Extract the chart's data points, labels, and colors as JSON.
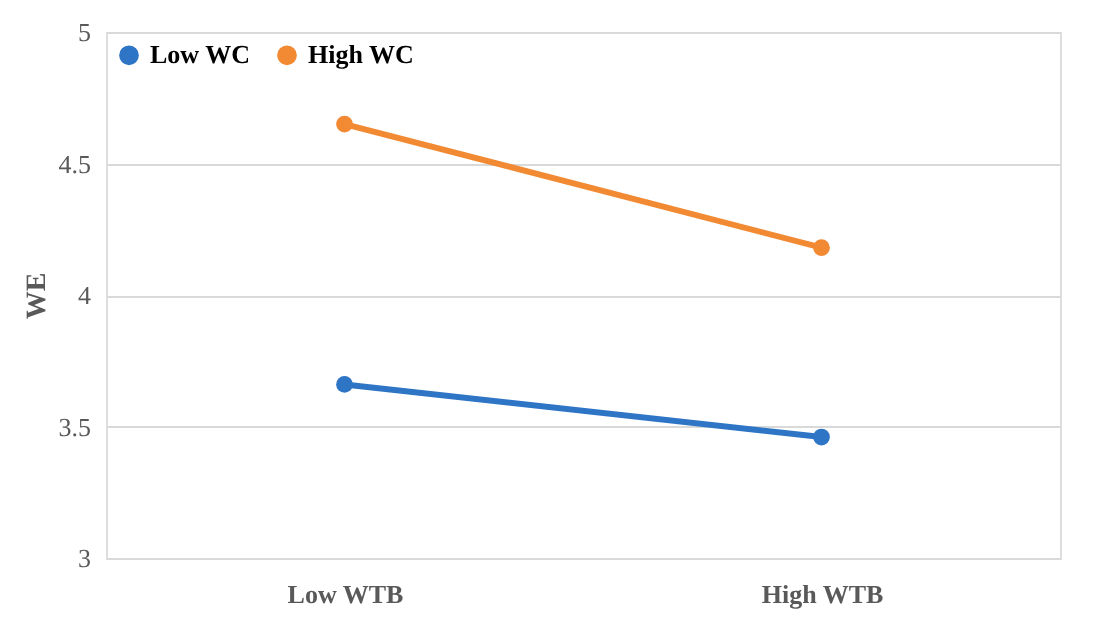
{
  "chart_data": {
    "type": "line",
    "ylabel": "WE",
    "categories": [
      "Low WTB",
      "High WTB"
    ],
    "series": [
      {
        "name": "Low WC",
        "color": "#2e75c6",
        "values": [
          3.66,
          3.46
        ]
      },
      {
        "name": "High WC",
        "color": "#f28a33",
        "values": [
          4.65,
          4.18
        ]
      }
    ],
    "ylim": [
      3,
      5
    ],
    "yticks": [
      3,
      3.5,
      4,
      4.5,
      5
    ],
    "grid": "y",
    "legend": "top left",
    "marker": "circle",
    "line_style": "solid"
  }
}
